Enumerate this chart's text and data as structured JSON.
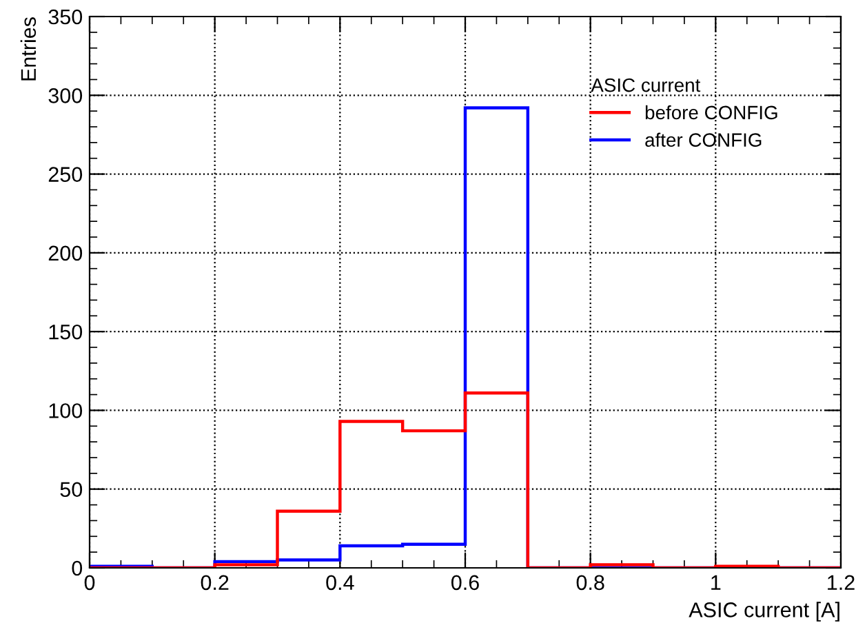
{
  "chart_data": {
    "type": "histogram",
    "xlabel": "ASIC current [A]",
    "ylabel": "Entries",
    "legend_title": "ASIC current",
    "bins": [
      0,
      0.1,
      0.2,
      0.3,
      0.4,
      0.5,
      0.6,
      0.7,
      0.8,
      0.9,
      1,
      1.1,
      1.2
    ],
    "series": [
      {
        "name": "before CONFIG",
        "color": "#ff0000",
        "values": [
          0,
          0,
          2,
          36,
          93,
          87,
          111,
          0,
          2,
          0,
          1,
          0
        ]
      },
      {
        "name": "after CONFIG",
        "color": "#0000ff",
        "values": [
          1,
          0,
          4,
          5,
          14,
          15,
          292,
          0,
          0,
          0,
          0,
          0
        ]
      }
    ],
    "xlim": [
      0,
      1.2
    ],
    "ylim": [
      0,
      350
    ],
    "xticks": [
      0,
      0.2,
      0.4,
      0.6,
      0.8,
      1,
      1.2
    ],
    "yticks": [
      0,
      50,
      100,
      150,
      200,
      250,
      300,
      350
    ],
    "grid": true,
    "legend": "top right"
  }
}
